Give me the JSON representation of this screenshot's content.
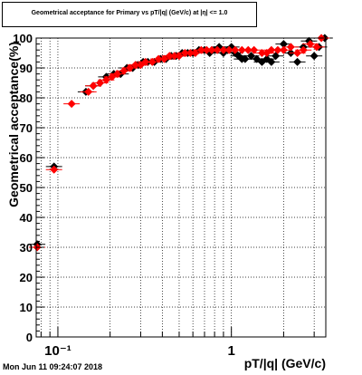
{
  "footer_timestamp": "Mon Jun 11 09:24:07 2018",
  "chart_data": {
    "type": "scatter",
    "title": "Geometrical acceptance for Primary vs pT/|q| (GeV/c) at |η| <= 1.0",
    "xlabel": "pT/|q| (GeV/c)",
    "ylabel": "Geometrical acceptance(%)",
    "x_scale": "log",
    "xlim": [
      0.075,
      3.5
    ],
    "ylim": [
      0,
      100
    ],
    "grid": true,
    "y_ticks": [
      0,
      10,
      20,
      30,
      40,
      50,
      60,
      70,
      80,
      90,
      100
    ],
    "y_tick_labels": [
      "0",
      "10",
      "20",
      "30",
      "40",
      "50",
      "60",
      "70",
      "80",
      "90",
      "100"
    ],
    "x_tick_labels": [
      "10⁻¹",
      "1"
    ],
    "series": [
      {
        "color": "#000000",
        "marker": "diamond",
        "points": [
          [
            0.076,
            31
          ],
          [
            0.095,
            57
          ],
          [
            0.145,
            82
          ],
          [
            0.16,
            84
          ],
          [
            0.175,
            85
          ],
          [
            0.19,
            87
          ],
          [
            0.21,
            88
          ],
          [
            0.23,
            88
          ],
          [
            0.25,
            90
          ],
          [
            0.27,
            90
          ],
          [
            0.29,
            91
          ],
          [
            0.31,
            92
          ],
          [
            0.33,
            92
          ],
          [
            0.36,
            92
          ],
          [
            0.39,
            93
          ],
          [
            0.42,
            93
          ],
          [
            0.45,
            94
          ],
          [
            0.48,
            94
          ],
          [
            0.52,
            95
          ],
          [
            0.56,
            95
          ],
          [
            0.6,
            95
          ],
          [
            0.65,
            96
          ],
          [
            0.7,
            96
          ],
          [
            0.75,
            95
          ],
          [
            0.8,
            96
          ],
          [
            0.85,
            97
          ],
          [
            0.9,
            95
          ],
          [
            0.95,
            96
          ],
          [
            1.0,
            97
          ],
          [
            1.05,
            95
          ],
          [
            1.1,
            94
          ],
          [
            1.15,
            93
          ],
          [
            1.2,
            93
          ],
          [
            1.3,
            94
          ],
          [
            1.4,
            93
          ],
          [
            1.5,
            92
          ],
          [
            1.6,
            93
          ],
          [
            1.7,
            92
          ],
          [
            1.8,
            94
          ],
          [
            2.0,
            98
          ],
          [
            2.2,
            95
          ],
          [
            2.4,
            92
          ],
          [
            2.6,
            97
          ],
          [
            2.8,
            99
          ],
          [
            3.0,
            94
          ],
          [
            3.2,
            97
          ],
          [
            3.45,
            100
          ]
        ]
      },
      {
        "color": "#ff0000",
        "marker": "diamond",
        "points": [
          [
            0.076,
            30
          ],
          [
            0.095,
            56
          ],
          [
            0.12,
            78
          ],
          [
            0.15,
            82
          ],
          [
            0.16,
            84
          ],
          [
            0.175,
            85
          ],
          [
            0.19,
            86
          ],
          [
            0.205,
            87
          ],
          [
            0.22,
            88
          ],
          [
            0.24,
            89
          ],
          [
            0.26,
            90
          ],
          [
            0.28,
            91
          ],
          [
            0.3,
            91
          ],
          [
            0.32,
            92
          ],
          [
            0.35,
            92
          ],
          [
            0.38,
            93
          ],
          [
            0.41,
            93
          ],
          [
            0.44,
            94
          ],
          [
            0.47,
            94
          ],
          [
            0.5,
            94
          ],
          [
            0.54,
            95
          ],
          [
            0.58,
            95
          ],
          [
            0.62,
            95
          ],
          [
            0.67,
            96
          ],
          [
            0.72,
            96
          ],
          [
            0.77,
            96
          ],
          [
            0.83,
            96
          ],
          [
            0.9,
            96
          ],
          [
            0.97,
            96
          ],
          [
            1.05,
            96
          ],
          [
            1.15,
            96
          ],
          [
            1.25,
            96
          ],
          [
            1.35,
            96
          ],
          [
            1.5,
            95
          ],
          [
            1.6,
            95
          ],
          [
            1.7,
            96
          ],
          [
            1.85,
            96
          ],
          [
            2.0,
            96
          ],
          [
            2.2,
            97
          ],
          [
            2.4,
            95
          ],
          [
            2.6,
            96
          ],
          [
            2.85,
            98
          ],
          [
            3.1,
            97
          ],
          [
            3.3,
            100
          ]
        ]
      }
    ]
  }
}
